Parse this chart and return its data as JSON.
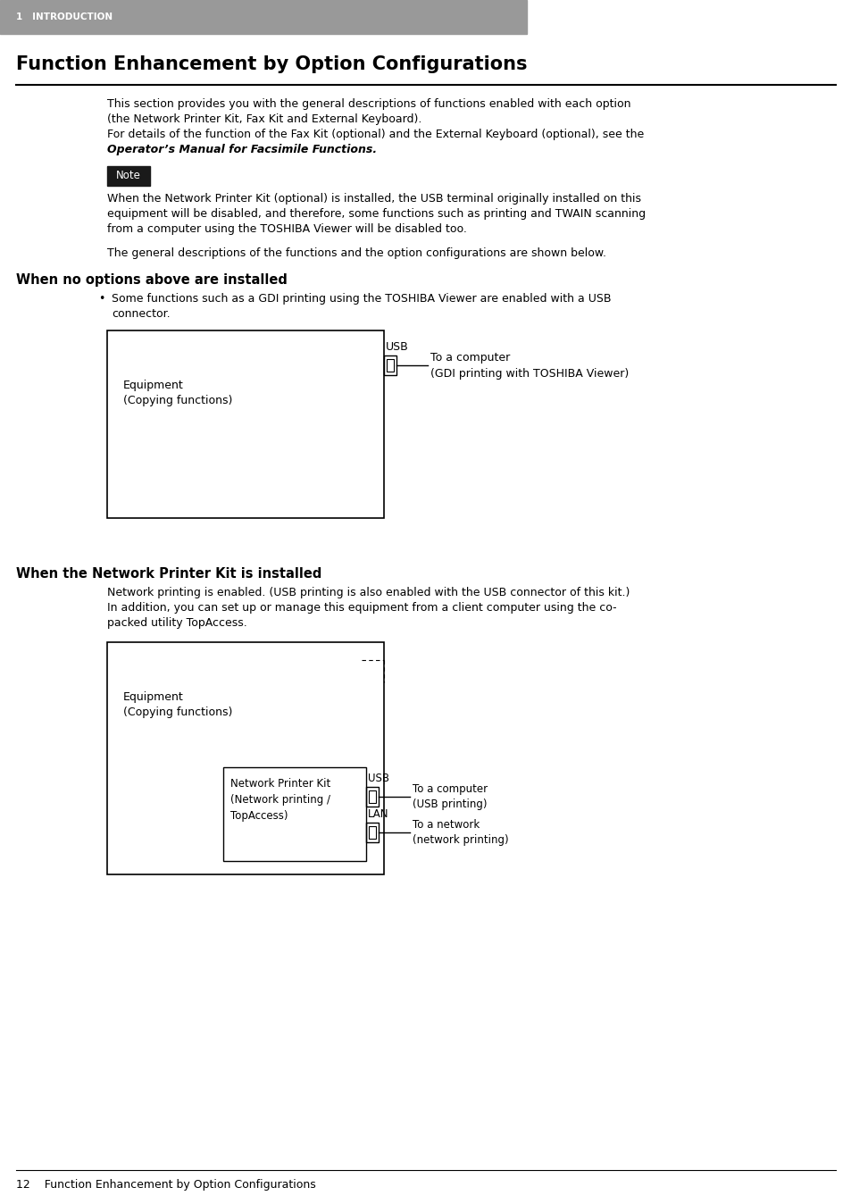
{
  "page_bg": "#ffffff",
  "header_bg": "#999999",
  "header_text": "1   INTRODUCTION",
  "header_text_color": "#ffffff",
  "title": "Function Enhancement by Option Configurations",
  "footer_text": "12    Function Enhancement by Option Configurations",
  "font_size_body": 9.0,
  "font_size_title": 15,
  "font_size_section": 10.5,
  "font_size_header": 7.5,
  "font_size_footer": 9,
  "font_size_note": 8.5
}
